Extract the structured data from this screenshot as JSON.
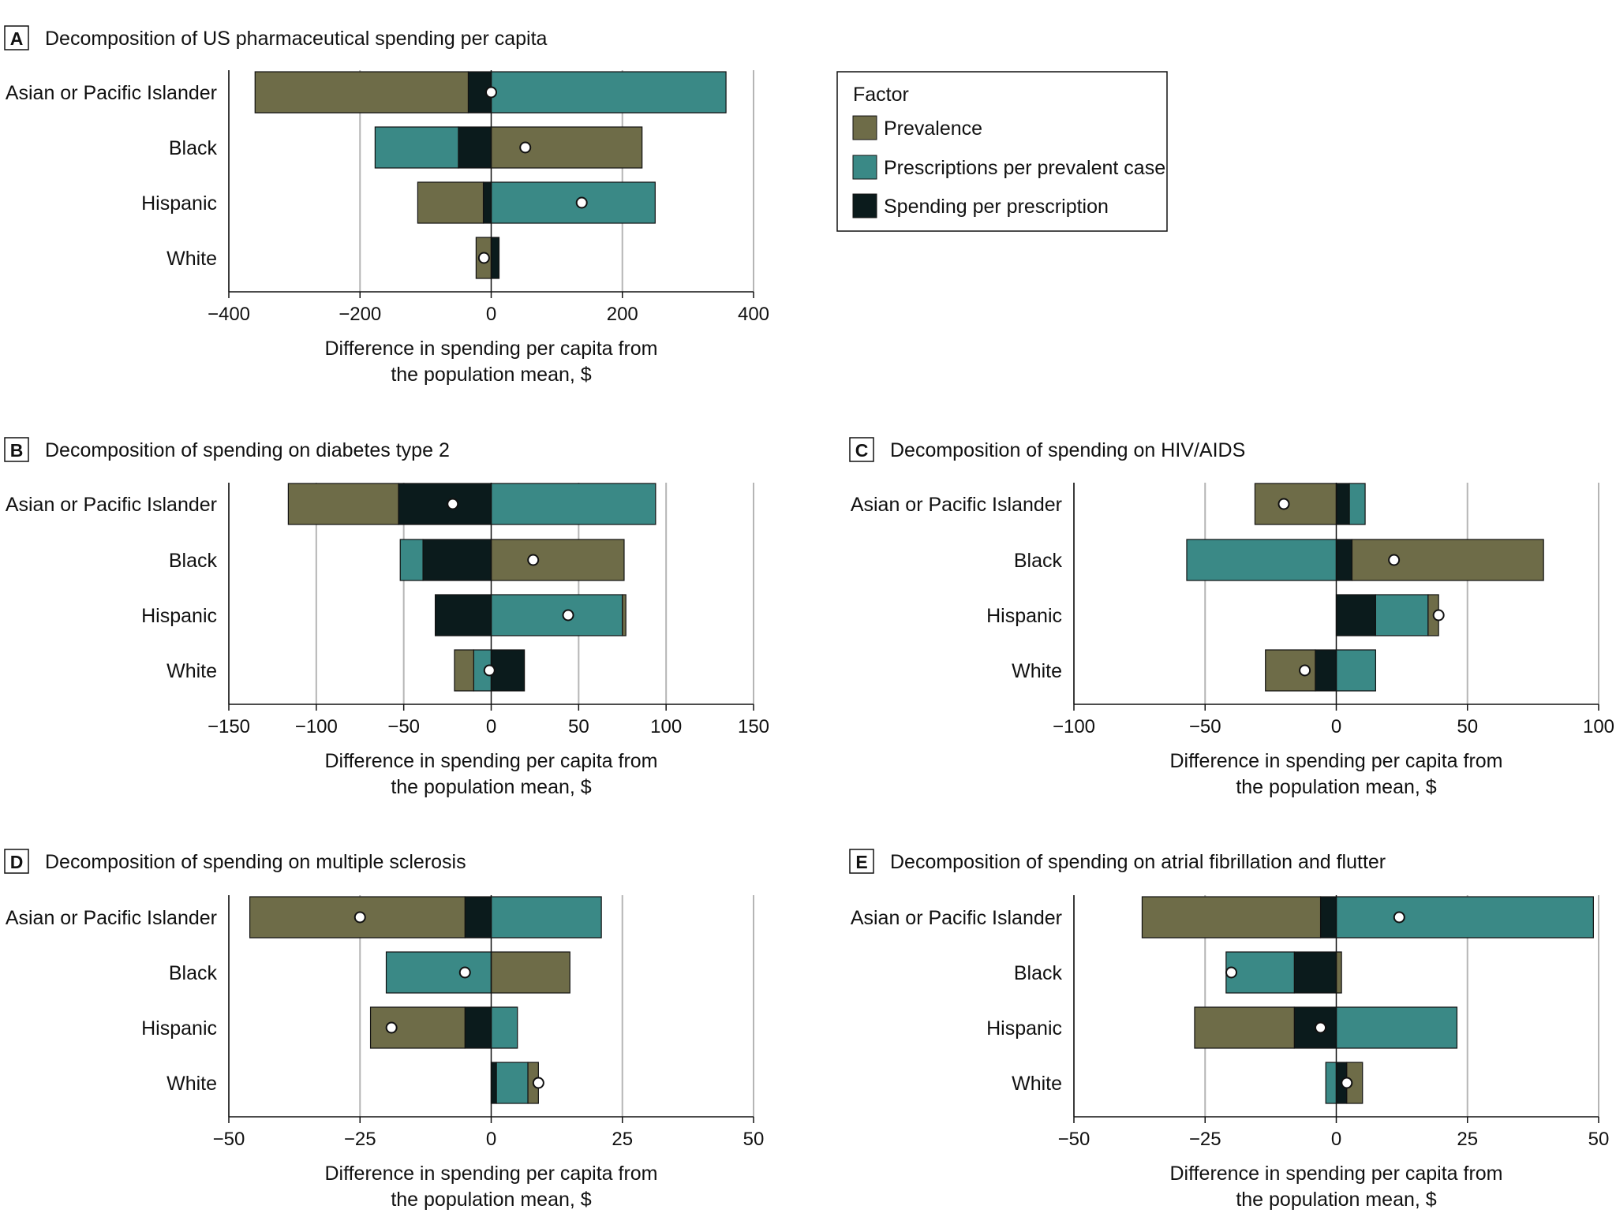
{
  "figure": {
    "x_axis_label_line1": "Difference in spending per capita from",
    "x_axis_label_line2": "the population mean, $",
    "categories": [
      "Asian or Pacific Islander",
      "Black",
      "Hispanic",
      "White"
    ]
  },
  "legend": {
    "title": "Factor",
    "items": [
      {
        "label": "Prevalence",
        "color": "#6e6c48"
      },
      {
        "label": "Prescriptions per prevalent case",
        "color": "#3a8986"
      },
      {
        "label": "Spending per prescription",
        "color": "#0b1b1c"
      }
    ]
  },
  "colors": {
    "prevalence": "#6e6c48",
    "prescriptions": "#3a8986",
    "spending": "#0b1b1c",
    "grid": "#b5b5b5",
    "marker_fill": "#ffffff"
  },
  "chart_data": [
    {
      "type": "bar",
      "panel": "A",
      "title": "Decomposition of US pharmaceutical spending per capita",
      "xlabel": "Difference in spending per capita from the population mean, $",
      "xlim": [
        -400,
        400
      ],
      "xticks": [
        -400,
        -200,
        0,
        200,
        400
      ],
      "categories": [
        "Asian or Pacific Islander",
        "Black",
        "Hispanic",
        "White"
      ],
      "series": [
        {
          "name": "Prevalence",
          "values": [
            -325,
            230,
            -100,
            -23
          ]
        },
        {
          "name": "Prescriptions per prevalent case",
          "values": [
            358,
            -127,
            250,
            0
          ]
        },
        {
          "name": "Spending per prescription",
          "values": [
            -35,
            -50,
            -12,
            12
          ]
        }
      ],
      "net": [
        0,
        52,
        138,
        -11
      ]
    },
    {
      "type": "bar",
      "panel": "B",
      "title": "Decomposition of spending on diabetes type 2",
      "xlabel": "Difference in spending per capita from the population mean, $",
      "xlim": [
        -150,
        150
      ],
      "xticks": [
        -150,
        -100,
        -50,
        0,
        50,
        100,
        150
      ],
      "categories": [
        "Asian or Pacific Islander",
        "Black",
        "Hispanic",
        "White"
      ],
      "series": [
        {
          "name": "Prevalence",
          "values": [
            -63,
            76,
            2,
            -11
          ]
        },
        {
          "name": "Prescriptions per prevalent case",
          "values": [
            94,
            -13,
            75,
            -10
          ]
        },
        {
          "name": "Spending per prescription",
          "values": [
            -53,
            -39,
            -32,
            19
          ]
        }
      ],
      "net": [
        -22,
        24,
        44,
        -1
      ]
    },
    {
      "type": "bar",
      "panel": "C",
      "title": "Decomposition of spending on HIV/AIDS",
      "xlabel": "Difference in spending per capita from the population mean, $",
      "xlim": [
        -100,
        100
      ],
      "xticks": [
        -100,
        -50,
        0,
        50,
        100
      ],
      "categories": [
        "Asian or Pacific Islander",
        "Black",
        "Hispanic",
        "White"
      ],
      "series": [
        {
          "name": "Prevalence",
          "values": [
            -31,
            73,
            4,
            -19
          ]
        },
        {
          "name": "Prescriptions per prevalent case",
          "values": [
            6,
            -57,
            20,
            15
          ]
        },
        {
          "name": "Spending per prescription",
          "values": [
            5,
            6,
            15,
            -8
          ]
        }
      ],
      "net": [
        -20,
        22,
        39,
        -12
      ]
    },
    {
      "type": "bar",
      "panel": "D",
      "title": "Decomposition of spending on multiple sclerosis",
      "xlabel": "Difference in spending per capita from the population mean, $",
      "xlim": [
        -50,
        50
      ],
      "xticks": [
        -50,
        -25,
        0,
        25,
        50
      ],
      "categories": [
        "Asian or Pacific Islander",
        "Black",
        "Hispanic",
        "White"
      ],
      "series": [
        {
          "name": "Prevalence",
          "values": [
            -41,
            15,
            -18,
            2
          ]
        },
        {
          "name": "Prescriptions per prevalent case",
          "values": [
            21,
            -20,
            5,
            6
          ]
        },
        {
          "name": "Spending per prescription",
          "values": [
            -5,
            0,
            -5,
            1
          ]
        }
      ],
      "net": [
        -25,
        -5,
        -19,
        9
      ]
    },
    {
      "type": "bar",
      "panel": "E",
      "title": "Decomposition of spending on atrial fibrillation and flutter",
      "xlabel": "Difference in spending per capita from the population mean, $",
      "xlim": [
        -50,
        50
      ],
      "xticks": [
        -50,
        -25,
        0,
        25,
        50
      ],
      "categories": [
        "Asian or Pacific Islander",
        "Black",
        "Hispanic",
        "White"
      ],
      "series": [
        {
          "name": "Prevalence",
          "values": [
            -34,
            1,
            -19,
            3
          ]
        },
        {
          "name": "Prescriptions per prevalent case",
          "values": [
            49,
            -13,
            23,
            -2
          ]
        },
        {
          "name": "Spending per prescription",
          "values": [
            -3,
            -8,
            -8,
            2
          ]
        }
      ],
      "net": [
        12,
        -20,
        -3,
        2
      ]
    }
  ]
}
